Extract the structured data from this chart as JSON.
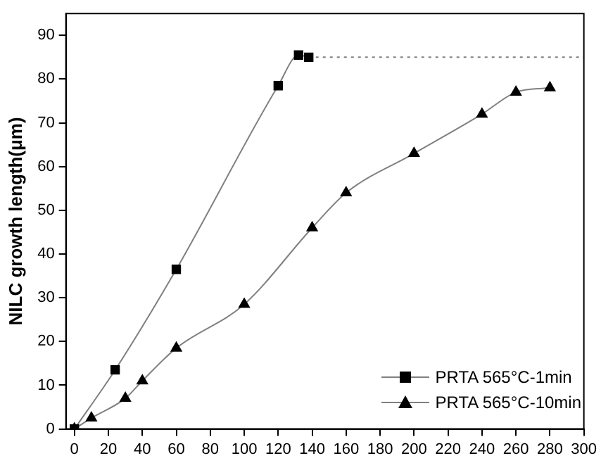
{
  "chart_data": {
    "type": "line",
    "ylabel": "NILC growth length(μm)",
    "xlim": [
      -5,
      300
    ],
    "xticks": [
      0,
      20,
      40,
      60,
      80,
      100,
      120,
      140,
      160,
      180,
      200,
      220,
      240,
      260,
      280,
      300
    ],
    "ylim": [
      0,
      95
    ],
    "yticks": [
      0,
      10,
      20,
      30,
      40,
      50,
      60,
      70,
      80,
      90
    ],
    "grid": false,
    "legend": "bottom right",
    "series": [
      {
        "name": "PRTA 565°C-1min",
        "color": "#000000",
        "marker": "square",
        "line_style": "solid",
        "x": [
          0,
          24,
          60,
          120,
          132,
          138
        ],
        "values": [
          0,
          13.5,
          36.5,
          78.5,
          85.5,
          85
        ]
      },
      {
        "color": "#808080",
        "marker": "none",
        "line_style": "dotted",
        "x": [
          138,
          300
        ],
        "values": [
          85,
          85
        ]
      },
      {
        "name": "PRTA 565°C-10min",
        "color": "#000000",
        "marker": "triangle",
        "line_style": "solid",
        "x": [
          0,
          10,
          30,
          40,
          60,
          100,
          140,
          160,
          200,
          240,
          260,
          280
        ],
        "values": [
          0,
          2.5,
          7,
          11,
          18.5,
          28.5,
          46,
          54,
          63,
          72,
          77,
          78
        ]
      }
    ]
  }
}
